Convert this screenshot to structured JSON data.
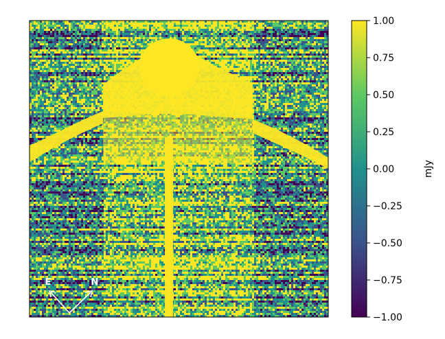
{
  "figure": {
    "type": "astronomical-image",
    "description_kind": "image with colorbar",
    "colormap": "viridis",
    "colormap_stops": [
      "#440154",
      "#3b528b",
      "#21918c",
      "#5ec962",
      "#fde725"
    ],
    "orientation": {
      "east_label": "E",
      "north_label": "N",
      "arrow_color": "#ffffff"
    },
    "colorbar": {
      "label": "mJy",
      "min": -1.0,
      "max": 1.0,
      "ticks": [
        {
          "value": 1.0,
          "label": "1.00"
        },
        {
          "value": 0.75,
          "label": "0.75"
        },
        {
          "value": 0.5,
          "label": "0.50"
        },
        {
          "value": 0.25,
          "label": "0.25"
        },
        {
          "value": 0.0,
          "label": "0.00"
        },
        {
          "value": -0.25,
          "label": "−0.25"
        },
        {
          "value": -0.5,
          "label": "−0.50"
        },
        {
          "value": -0.75,
          "label": "−0.75"
        },
        {
          "value": -1.0,
          "label": "−1.00"
        }
      ]
    }
  }
}
